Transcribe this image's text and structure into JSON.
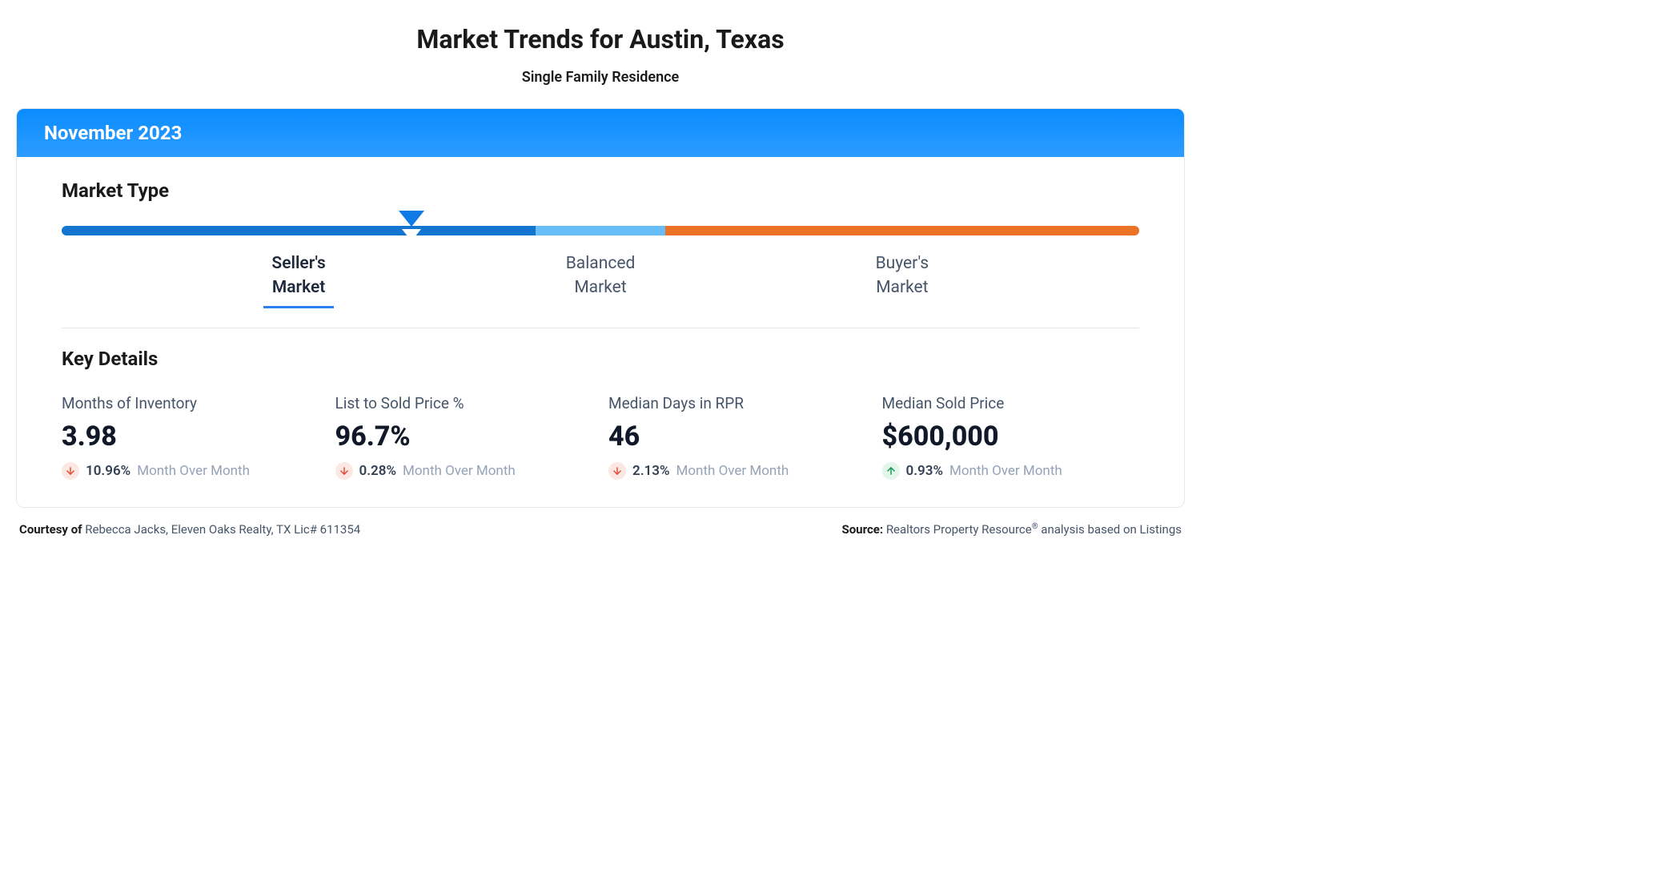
{
  "title": "Market Trends for Austin, Texas",
  "subtitle": "Single Family Residence",
  "card": {
    "header_label": "November 2023",
    "header_bg_gradient": [
      "#0a8cff",
      "#2d9cff"
    ],
    "header_text_color": "#ffffff"
  },
  "market_type": {
    "heading": "Market Type",
    "pointer_position_pct": 32.5,
    "pointer_border_color": "#0f7ae5",
    "segments": [
      {
        "width_pct": 44,
        "color": "#1475d1",
        "label_line1": "Seller's",
        "label_line2": "Market",
        "active": true
      },
      {
        "width_pct": 12,
        "color": "#67bdf5",
        "label_line1": "Balanced",
        "label_line2": "Market",
        "active": false
      },
      {
        "width_pct": 44,
        "color": "#ea7125",
        "label_line1": "Buyer's",
        "label_line2": "Market",
        "active": false
      }
    ],
    "active_underline_color": "#2d7ff3"
  },
  "key_details": {
    "heading": "Key Details",
    "period_label": "Month Over Month",
    "down_arrow_bg": "#fde7e3",
    "down_arrow_color": "#e34a33",
    "up_arrow_bg": "#e3f6ea",
    "up_arrow_color": "#159a55",
    "items": [
      {
        "label": "Months of Inventory",
        "value": "3.98",
        "change_pct": "10.96%",
        "direction": "down"
      },
      {
        "label": "List to Sold Price %",
        "value": "96.7%",
        "change_pct": "0.28%",
        "direction": "down"
      },
      {
        "label": "Median Days in RPR",
        "value": "46",
        "change_pct": "2.13%",
        "direction": "down"
      },
      {
        "label": "Median Sold Price",
        "value": "$600,000",
        "change_pct": "0.93%",
        "direction": "up"
      }
    ]
  },
  "footer": {
    "courtesy_prefix": "Courtesy of ",
    "courtesy_name": "Rebecca Jacks, Eleven Oaks Realty, TX Lic# 611354",
    "source_prefix": "Source: ",
    "source_text_a": "Realtors Property Resource",
    "source_text_b": " analysis based on Listings"
  },
  "colors": {
    "body_text": "#1a1a1a",
    "muted_text": "#475569",
    "light_text": "#94a3b8",
    "border": "#e5e7eb"
  }
}
